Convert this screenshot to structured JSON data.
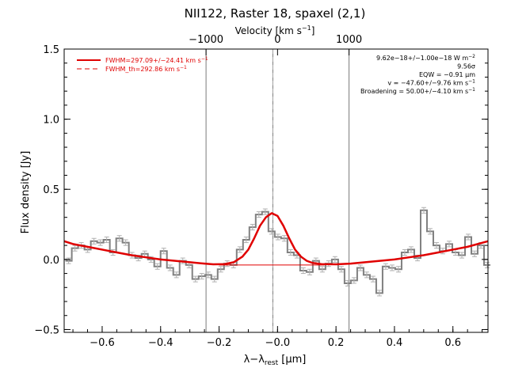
{
  "chart_data": {
    "type": "line",
    "title": "NII122, Raster 18, spaxel (2,1)",
    "xlabel": "λ−λ",
    "xlabel_sub": "rest",
    "xlabel_unit": " [μm]",
    "ylabel": "Flux density [Jy]",
    "top_axis_label": "Velocity [km s",
    "top_axis_label_sup": "−1",
    "top_axis_label_end": "]",
    "xlim": [
      -0.73,
      0.72
    ],
    "ylim": [
      -0.52,
      1.5
    ],
    "x_ticks": [
      -0.6,
      -0.4,
      -0.2,
      0.0,
      0.2,
      0.4,
      0.6
    ],
    "x_tick_labels": [
      "−0.6",
      "−0.4",
      "−0.2",
      "−0.0",
      "0.2",
      "0.4",
      "0.6"
    ],
    "y_ticks": [
      -0.5,
      0.0,
      0.5,
      1.0,
      1.5
    ],
    "y_tick_labels": [
      "−0.5",
      "0.0",
      "0.5",
      "1.0",
      "1.5"
    ],
    "top_ticks_x": [
      -0.2446,
      0.0,
      0.2446
    ],
    "top_tick_labels": [
      "−1000",
      "0",
      "1000"
    ],
    "vertical_lines_x": [
      -0.2446,
      -0.016,
      0.2446
    ],
    "dashed_line_x": -0.016,
    "legend": {
      "placement": "top-left",
      "entries": [
        {
          "label": "FWHM=297.09+/−24.41 km s",
          "sup": "−1",
          "style": "solid"
        },
        {
          "label": "FWHM_th=292.86 km s",
          "sup": "−1",
          "style": "dashed"
        }
      ]
    },
    "annotations": {
      "placement": "top-right",
      "lines": [
        {
          "text": "9.62e−18+/−1.00e−18 W m",
          "sup": "−2"
        },
        {
          "text": "9.56σ",
          "sup": ""
        },
        {
          "text": "EQW = −0.91 μm",
          "sup": ""
        },
        {
          "text": "v = −47.60+/−9.76 km s",
          "sup": "−1"
        },
        {
          "text": "Broadening = 50.00+/−4.10 km s",
          "sup": "−1"
        }
      ]
    },
    "series": [
      {
        "style": "step",
        "color": "#808080",
        "x": [
          -0.7148,
          -0.6931,
          -0.6714,
          -0.6497,
          -0.628,
          -0.6063,
          -0.5846,
          -0.5629,
          -0.5412,
          -0.5195,
          -0.4978,
          -0.4761,
          -0.4544,
          -0.4327,
          -0.411,
          -0.3893,
          -0.3676,
          -0.3459,
          -0.3242,
          -0.3025,
          -0.2808,
          -0.2591,
          -0.2374,
          -0.2157,
          -0.194,
          -0.1723,
          -0.1506,
          -0.1289,
          -0.1072,
          -0.0855,
          -0.0638,
          -0.0421,
          -0.0204,
          0.0013,
          0.023,
          0.0447,
          0.0664,
          0.0881,
          0.1098,
          0.1315,
          0.1532,
          0.1749,
          0.1966,
          0.2183,
          0.24,
          0.2617,
          0.2834,
          0.3051,
          0.3268,
          0.3485,
          0.3702,
          0.3919,
          0.4136,
          0.4353,
          0.457,
          0.4787,
          0.5004,
          0.5221,
          0.5438,
          0.5655,
          0.5872,
          0.6089,
          0.6306,
          0.6523,
          0.674,
          0.6957,
          0.7174
        ],
        "y": [
          -0.01,
          0.08,
          0.1,
          0.07,
          0.13,
          0.12,
          0.14,
          0.05,
          0.15,
          0.12,
          0.03,
          0.01,
          0.04,
          0.0,
          -0.05,
          0.06,
          -0.06,
          -0.11,
          -0.01,
          -0.04,
          -0.14,
          -0.12,
          -0.11,
          -0.14,
          -0.07,
          -0.03,
          -0.04,
          0.07,
          0.14,
          0.23,
          0.32,
          0.34,
          0.2,
          0.16,
          0.15,
          0.05,
          0.03,
          -0.08,
          -0.09,
          -0.01,
          -0.07,
          -0.03,
          0.0,
          -0.07,
          -0.17,
          -0.15,
          -0.06,
          -0.11,
          -0.14,
          -0.24,
          -0.05,
          -0.06,
          -0.07,
          0.05,
          0.07,
          0.01,
          0.35,
          0.2,
          0.1,
          0.06,
          0.11,
          0.05,
          0.03,
          0.16,
          0.04,
          0.1,
          -0.04
        ],
        "errors": 0.02
      },
      {
        "style": "line",
        "color": "#e00000",
        "x": [
          -0.73,
          -0.7,
          -0.65,
          -0.6,
          -0.55,
          -0.5,
          -0.45,
          -0.4,
          -0.35,
          -0.3,
          -0.25,
          -0.22,
          -0.18,
          -0.15,
          -0.12,
          -0.1,
          -0.08,
          -0.06,
          -0.04,
          -0.02,
          0.0,
          0.02,
          0.04,
          0.06,
          0.08,
          0.1,
          0.12,
          0.15,
          0.2,
          0.25,
          0.3,
          0.35,
          0.4,
          0.45,
          0.5,
          0.55,
          0.6,
          0.65,
          0.72
        ],
        "y": [
          0.13,
          0.11,
          0.09,
          0.07,
          0.05,
          0.03,
          0.015,
          0.0,
          -0.01,
          -0.02,
          -0.03,
          -0.035,
          -0.033,
          -0.02,
          0.02,
          0.07,
          0.15,
          0.24,
          0.3,
          0.33,
          0.31,
          0.24,
          0.15,
          0.07,
          0.02,
          -0.01,
          -0.025,
          -0.033,
          -0.035,
          -0.03,
          -0.02,
          -0.01,
          0.0,
          0.015,
          0.03,
          0.05,
          0.07,
          0.09,
          0.13
        ]
      },
      {
        "style": "line",
        "color": "#e00000",
        "x": [
          -0.2,
          0.16
        ],
        "y": [
          -0.04,
          -0.04
        ]
      }
    ]
  }
}
